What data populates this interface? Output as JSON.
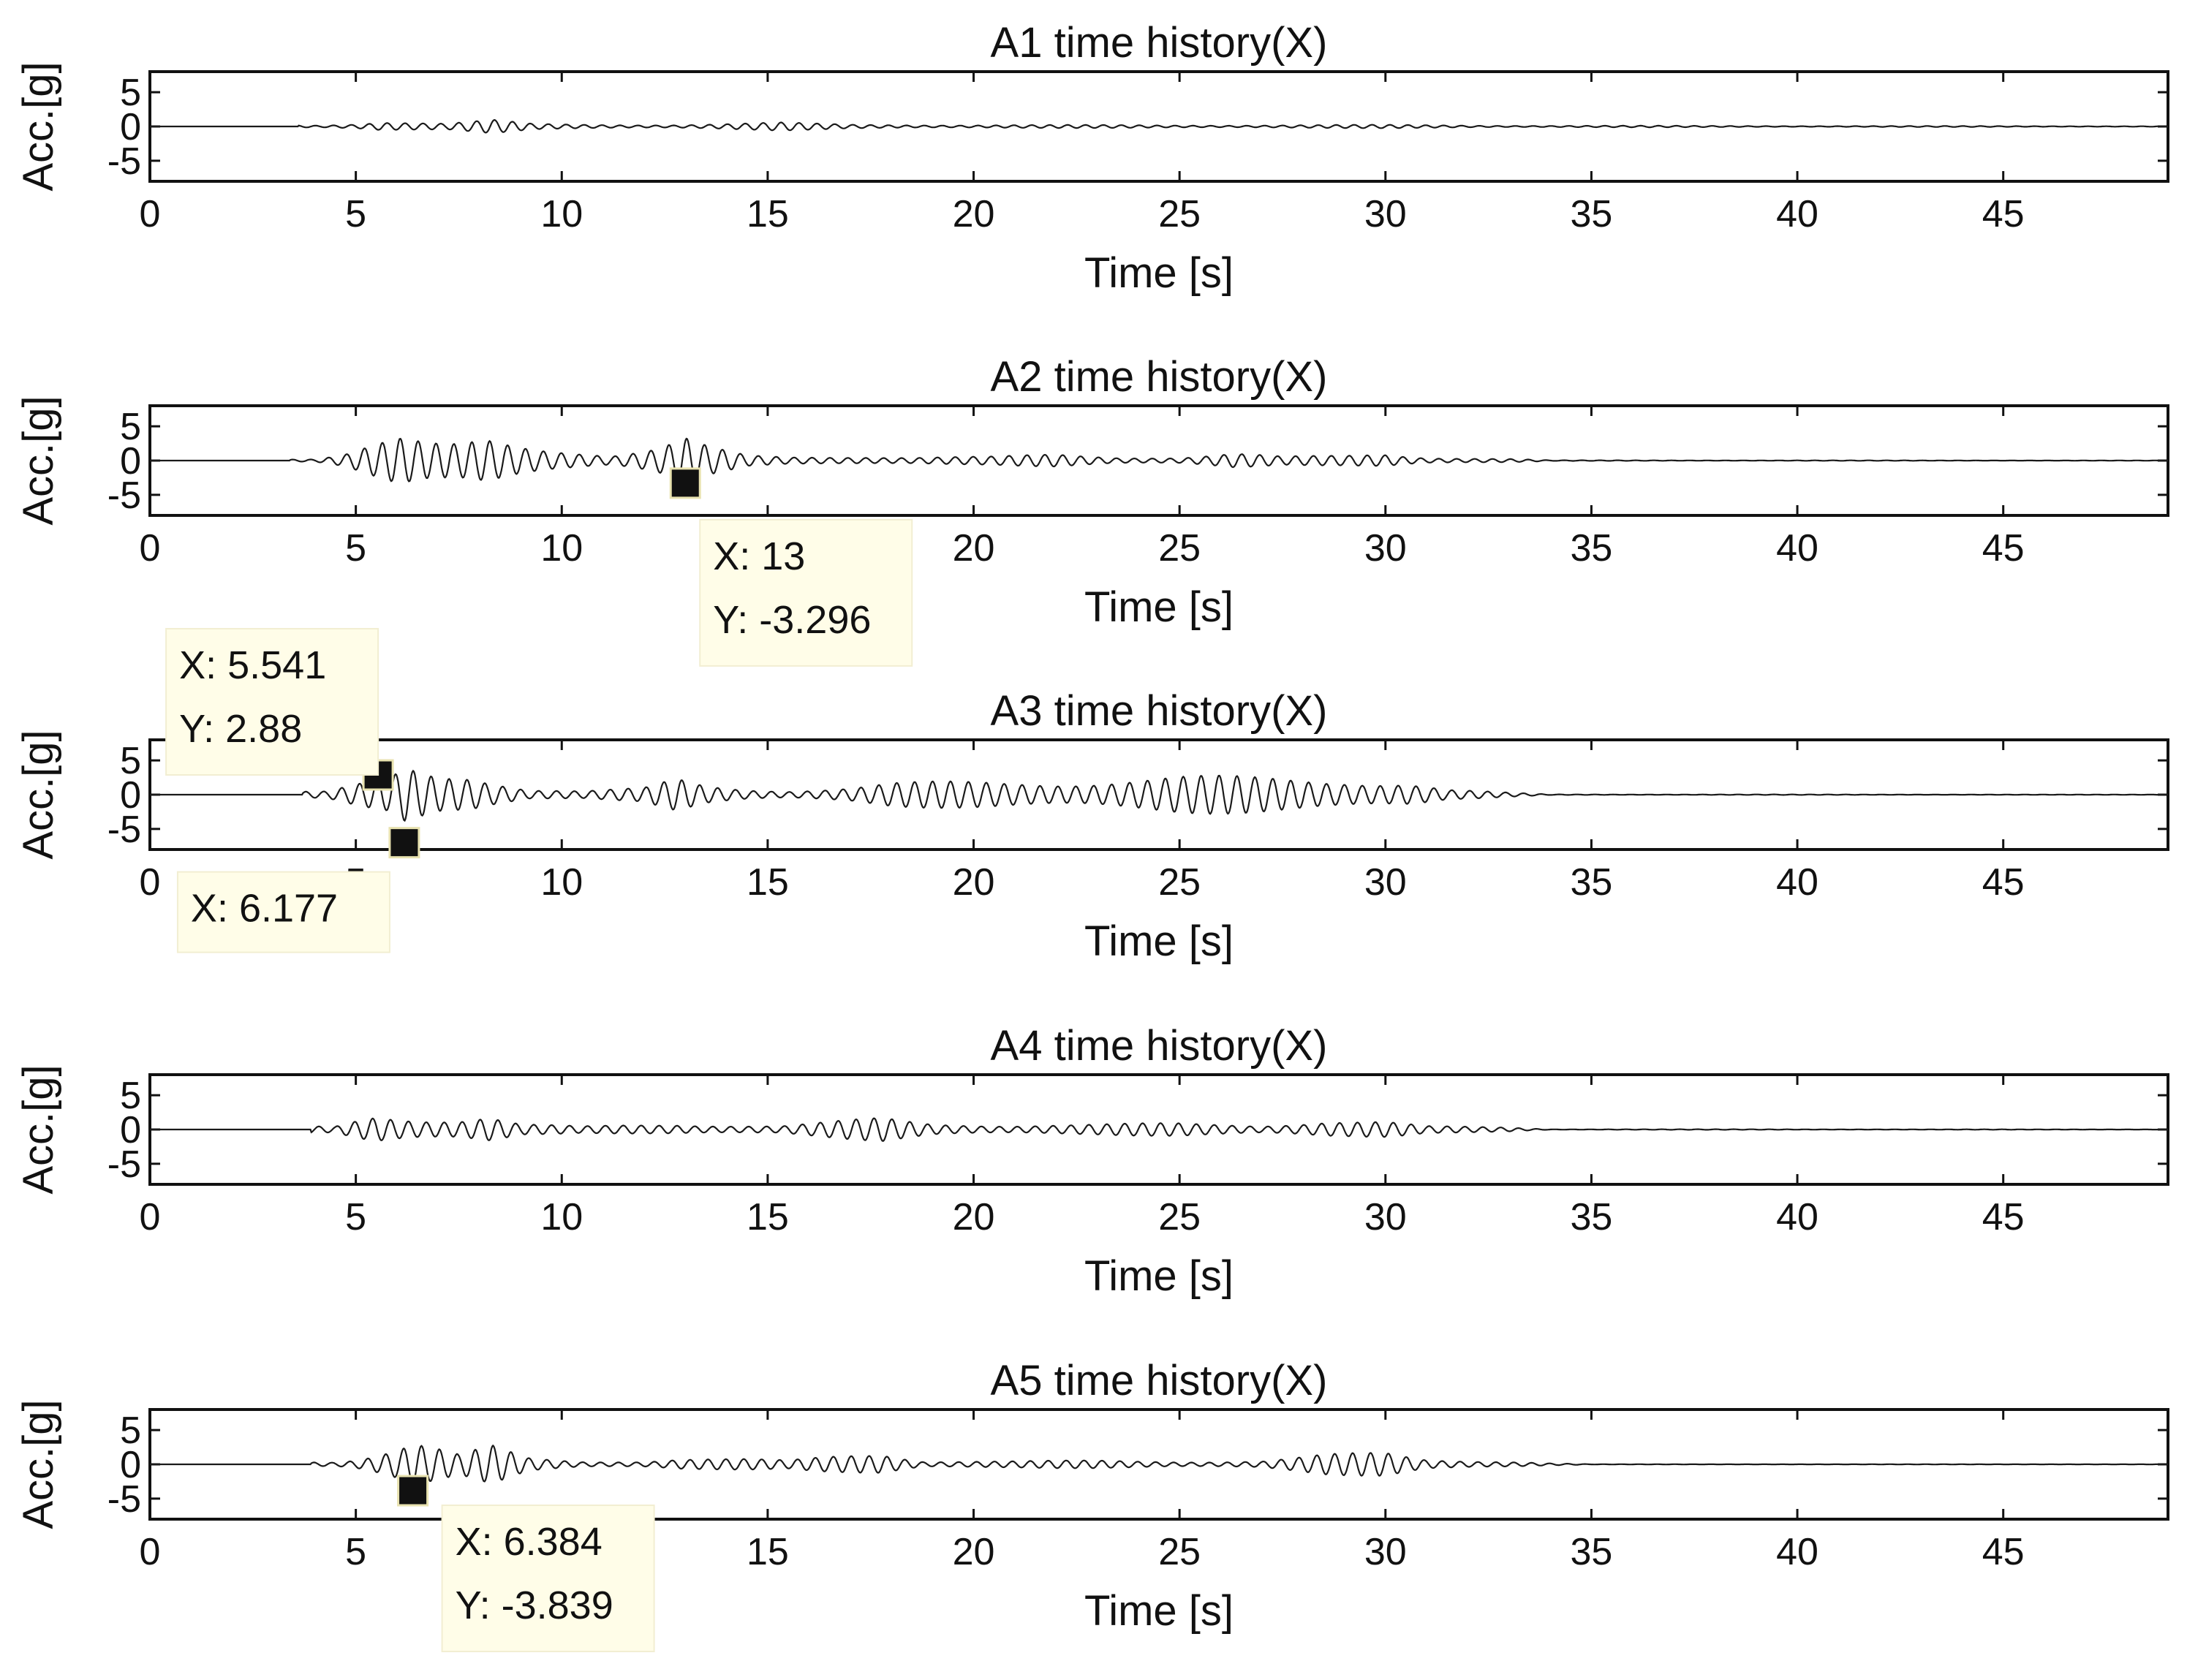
{
  "chart_data": [
    {
      "type": "line",
      "title": "A1 time history(X)",
      "xlabel": "Time [s]",
      "ylabel": "Acc.[g]",
      "xlim": [
        0,
        49
      ],
      "ylim": [
        -8,
        8
      ],
      "xticks": [
        0,
        5,
        10,
        15,
        20,
        25,
        30,
        35,
        40,
        45
      ],
      "yticks": [
        -5,
        0,
        5
      ],
      "ytick_labels": [
        "-5",
        "0",
        "5"
      ],
      "envelope": [
        [
          4.2,
          0.2
        ],
        [
          5,
          0.5
        ],
        [
          5.6,
          1.0
        ],
        [
          6.5,
          0.7
        ],
        [
          7.2,
          0.5
        ],
        [
          8.3,
          1.0
        ],
        [
          9.3,
          0.4
        ],
        [
          11,
          0.3
        ],
        [
          12.8,
          0.3
        ],
        [
          15.3,
          0.6
        ],
        [
          17,
          0.3
        ],
        [
          20,
          0.25
        ],
        [
          25,
          0.2
        ],
        [
          30,
          0.25
        ],
        [
          33,
          0.15
        ],
        [
          38,
          0.1
        ],
        [
          42,
          0.08
        ],
        [
          49,
          0.05
        ]
      ],
      "datatips": []
    },
    {
      "type": "line",
      "title": "A2 time history(X)",
      "xlabel": "Time [s]",
      "ylabel": "Acc.[g]",
      "xlim": [
        0,
        49
      ],
      "ylim": [
        -8,
        8
      ],
      "xticks": [
        0,
        5,
        10,
        15,
        20,
        25,
        30,
        35,
        40,
        45
      ],
      "yticks": [
        -5,
        0,
        5
      ],
      "ytick_labels": [
        "-5",
        "0",
        "5"
      ],
      "envelope": [
        [
          4,
          0.3
        ],
        [
          4.7,
          1.2
        ],
        [
          5.3,
          2.5
        ],
        [
          6,
          3.5
        ],
        [
          6.8,
          2.5
        ],
        [
          7.5,
          2.5
        ],
        [
          8.2,
          3.5
        ],
        [
          9,
          2.8
        ],
        [
          10.2,
          2.0
        ],
        [
          11.2,
          1.0
        ],
        [
          12.3,
          2.0
        ],
        [
          13,
          3.5
        ],
        [
          13.6,
          2.0
        ],
        [
          14.5,
          0.8
        ],
        [
          15.5,
          0.6
        ],
        [
          17.2,
          0.8
        ],
        [
          18.5,
          0.6
        ],
        [
          20.5,
          0.6
        ],
        [
          22,
          1.0
        ],
        [
          23.5,
          0.6
        ],
        [
          25,
          0.6
        ],
        [
          26.3,
          1.2
        ],
        [
          27.5,
          0.6
        ],
        [
          29,
          0.8
        ],
        [
          30,
          1.2
        ],
        [
          31,
          0.6
        ],
        [
          33,
          0.3
        ],
        [
          34,
          0.05
        ],
        [
          49,
          0.02
        ]
      ],
      "datatips": [
        {
          "x": 13,
          "y": -3.296,
          "label_x": "X: 13",
          "label_y": "Y: -3.296"
        }
      ]
    },
    {
      "type": "line",
      "title": "A3 time history(X)",
      "xlabel": "Time [s]",
      "ylabel": "Acc.[g]",
      "xlim": [
        0,
        49
      ],
      "ylim": [
        -8,
        8
      ],
      "xticks": [
        0,
        5,
        10,
        15,
        20,
        25,
        30,
        35,
        40,
        45
      ],
      "yticks": [
        -5,
        0,
        5
      ],
      "ytick_labels": [
        "-5",
        "0",
        "5"
      ],
      "envelope": [
        [
          4.3,
          0.5
        ],
        [
          5,
          1.5
        ],
        [
          5.8,
          2.5
        ],
        [
          6.2,
          4.5
        ],
        [
          7,
          3.5
        ],
        [
          7.8,
          4.0
        ],
        [
          8.5,
          2.5
        ],
        [
          9.2,
          1.0
        ],
        [
          10.5,
          0.6
        ],
        [
          12,
          1.0
        ],
        [
          12.8,
          2.5
        ],
        [
          13.5,
          1.5
        ],
        [
          14.5,
          1.0
        ],
        [
          15.5,
          0.8
        ],
        [
          17,
          1.2
        ],
        [
          18,
          1.8
        ],
        [
          19.5,
          2.0
        ],
        [
          21,
          2.2
        ],
        [
          23,
          2.5
        ],
        [
          25,
          2.8
        ],
        [
          27,
          2.8
        ],
        [
          29,
          2.8
        ],
        [
          30.5,
          2.2
        ],
        [
          31.5,
          0.8
        ],
        [
          33,
          0.3
        ],
        [
          34,
          0.05
        ],
        [
          49,
          0.02
        ]
      ],
      "datatips": [
        {
          "x": 6.177,
          "y": null,
          "label_x": "X: 6.177",
          "label_y": ""
        },
        {
          "x": 5.541,
          "y": 2.88,
          "label_x": "X: 5.541",
          "label_y": "Y: 2.88"
        }
      ]
    },
    {
      "type": "line",
      "title": "A4 time history(X)",
      "xlabel": "Time [s]",
      "ylabel": "Acc.[g]",
      "xlim": [
        0,
        49
      ],
      "ylim": [
        -8,
        8
      ],
      "xticks": [
        0,
        5,
        10,
        15,
        20,
        25,
        30,
        35,
        40,
        45
      ],
      "yticks": [
        -5,
        0,
        5
      ],
      "ytick_labels": [
        "-5",
        "0",
        "5"
      ],
      "envelope": [
        [
          4.5,
          0.5
        ],
        [
          5.5,
          2.8
        ],
        [
          6.5,
          2.2
        ],
        [
          7.5,
          1.8
        ],
        [
          8.2,
          2.2
        ],
        [
          9,
          0.8
        ],
        [
          10.5,
          0.5
        ],
        [
          12.8,
          1.0
        ],
        [
          14,
          0.8
        ],
        [
          15.3,
          0.6
        ],
        [
          17.8,
          1.8
        ],
        [
          19,
          1.0
        ],
        [
          21,
          0.8
        ],
        [
          23,
          0.8
        ],
        [
          25,
          1.0
        ],
        [
          27,
          0.8
        ],
        [
          28.5,
          1.5
        ],
        [
          30,
          1.2
        ],
        [
          31,
          0.5
        ],
        [
          33,
          0.4
        ],
        [
          34,
          0.05
        ],
        [
          49,
          0.02
        ]
      ],
      "datatips": []
    },
    {
      "type": "line",
      "title": "A5 time history(X)",
      "xlabel": "Time [s]",
      "ylabel": "Acc.[g]",
      "xlim": [
        0,
        49
      ],
      "ylim": [
        -8,
        8
      ],
      "xticks": [
        0,
        5,
        10,
        15,
        20,
        25,
        30,
        35,
        40,
        45
      ],
      "yticks": [
        -5,
        0,
        5
      ],
      "ytick_labels": [
        "-5",
        "0",
        "5"
      ],
      "envelope": [
        [
          4.5,
          0.5
        ],
        [
          5,
          1.0
        ],
        [
          6,
          3.0
        ],
        [
          6.4,
          3.8
        ],
        [
          7.5,
          1.5
        ],
        [
          8.3,
          2.8
        ],
        [
          9.2,
          1.0
        ],
        [
          10.5,
          0.5
        ],
        [
          12,
          0.6
        ],
        [
          12.8,
          1.0
        ],
        [
          14.5,
          0.8
        ],
        [
          15.5,
          0.6
        ],
        [
          17.8,
          2.2
        ],
        [
          18.8,
          0.6
        ],
        [
          21,
          0.5
        ],
        [
          23,
          0.6
        ],
        [
          25,
          0.5
        ],
        [
          27,
          0.6
        ],
        [
          28.5,
          1.5
        ],
        [
          30,
          1.8
        ],
        [
          31,
          0.8
        ],
        [
          33,
          0.6
        ],
        [
          34,
          0.2
        ],
        [
          35,
          0.02
        ],
        [
          49,
          0.02
        ]
      ],
      "datatips": [
        {
          "x": 6.384,
          "y": -3.839,
          "label_x": "X: 6.384",
          "label_y": "Y: -3.839"
        }
      ]
    }
  ]
}
